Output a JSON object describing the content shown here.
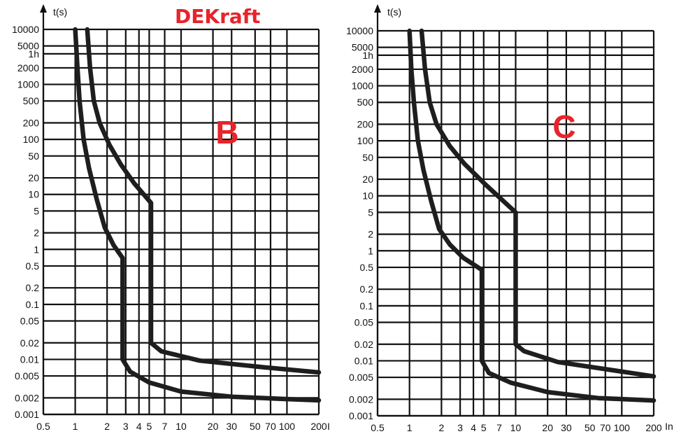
{
  "brand": {
    "text": "DEKraft",
    "color": "#e8232a"
  },
  "accent_color": "#e8232a",
  "grid_color": "#111111",
  "curve_color": "#1e1e1e",
  "chart_data": [
    {
      "type": "line",
      "title": "B",
      "xlabel": "I",
      "ylabel": "t(s)",
      "x_scale": "log",
      "y_scale": "log",
      "xlim": [
        0.5,
        200
      ],
      "ylim": [
        0.001,
        10000
      ],
      "grid": true,
      "x_ticks": [
        {
          "v": 0.5,
          "t": "0.5"
        },
        {
          "v": 1,
          "t": "1"
        },
        {
          "v": 2,
          "t": "2"
        },
        {
          "v": 3,
          "t": "3"
        },
        {
          "v": 4,
          "t": "4"
        },
        {
          "v": 5,
          "t": "5"
        },
        {
          "v": 7,
          "t": "7"
        },
        {
          "v": 10,
          "t": "10"
        },
        {
          "v": 20,
          "t": "20"
        },
        {
          "v": 30,
          "t": "30"
        },
        {
          "v": 50,
          "t": "50"
        },
        {
          "v": 70,
          "t": "70"
        },
        {
          "v": 100,
          "t": "100"
        },
        {
          "v": 200,
          "t": "200"
        }
      ],
      "y_ticks": [
        {
          "v": 10000,
          "t": "10000"
        },
        {
          "v": 5000,
          "t": "5000"
        },
        {
          "v": 3600,
          "t": "1h"
        },
        {
          "v": 2000,
          "t": "2000"
        },
        {
          "v": 1000,
          "t": "1000"
        },
        {
          "v": 500,
          "t": "500"
        },
        {
          "v": 200,
          "t": "200"
        },
        {
          "v": 100,
          "t": "100"
        },
        {
          "v": 50,
          "t": "50"
        },
        {
          "v": 20,
          "t": "20"
        },
        {
          "v": 10,
          "t": "10"
        },
        {
          "v": 5,
          "t": "5"
        },
        {
          "v": 2,
          "t": "2"
        },
        {
          "v": 1,
          "t": "1"
        },
        {
          "v": 0.5,
          "t": "0.5"
        },
        {
          "v": 0.2,
          "t": "0.2"
        },
        {
          "v": 0.1,
          "t": "0.1"
        },
        {
          "v": 0.05,
          "t": "0.05"
        },
        {
          "v": 0.02,
          "t": "0.02"
        },
        {
          "v": 0.01,
          "t": "0.01"
        },
        {
          "v": 0.005,
          "t": "0.005"
        },
        {
          "v": 0.002,
          "t": "0.002"
        },
        {
          "v": 0.001,
          "t": "0.001"
        }
      ],
      "series": [
        {
          "points": [
            [
              1.0,
              10000
            ],
            [
              1.05,
              2000
            ],
            [
              1.1,
              500
            ],
            [
              1.2,
              100
            ],
            [
              1.35,
              30
            ],
            [
              1.6,
              8
            ],
            [
              1.9,
              2.5
            ],
            [
              2.3,
              1.2
            ],
            [
              2.8,
              0.7
            ],
            [
              2.8,
              0.02
            ],
            [
              2.8,
              0.01
            ],
            [
              3.3,
              0.006
            ],
            [
              5,
              0.0038
            ],
            [
              10,
              0.0026
            ],
            [
              30,
              0.0021
            ],
            [
              100,
              0.0019
            ],
            [
              200,
              0.0018
            ]
          ]
        },
        {
          "points": [
            [
              1.3,
              10000
            ],
            [
              1.38,
              2000
            ],
            [
              1.5,
              500
            ],
            [
              1.7,
              200
            ],
            [
              2.1,
              80
            ],
            [
              2.7,
              35
            ],
            [
              3.6,
              16
            ],
            [
              5.2,
              7
            ],
            [
              5.2,
              0.1
            ],
            [
              5.2,
              0.02
            ],
            [
              6.5,
              0.014
            ],
            [
              15,
              0.0095
            ],
            [
              60,
              0.0072
            ],
            [
              200,
              0.0058
            ]
          ]
        }
      ]
    },
    {
      "type": "line",
      "title": "C",
      "xlabel": "In",
      "ylabel": "t(s)",
      "x_scale": "log",
      "y_scale": "log",
      "xlim": [
        0.5,
        200
      ],
      "ylim": [
        0.001,
        10000
      ],
      "grid": true,
      "x_ticks": [
        {
          "v": 0.5,
          "t": "0.5"
        },
        {
          "v": 1,
          "t": "1"
        },
        {
          "v": 2,
          "t": "2"
        },
        {
          "v": 3,
          "t": "3"
        },
        {
          "v": 4,
          "t": "4"
        },
        {
          "v": 5,
          "t": "5"
        },
        {
          "v": 7,
          "t": "7"
        },
        {
          "v": 10,
          "t": "10"
        },
        {
          "v": 20,
          "t": "20"
        },
        {
          "v": 30,
          "t": "30"
        },
        {
          "v": 50,
          "t": "50"
        },
        {
          "v": 70,
          "t": "70"
        },
        {
          "v": 100,
          "t": "100"
        },
        {
          "v": 200,
          "t": "200"
        }
      ],
      "y_ticks": [
        {
          "v": 10000,
          "t": "10000"
        },
        {
          "v": 5000,
          "t": "5000"
        },
        {
          "v": 3600,
          "t": "1h"
        },
        {
          "v": 2000,
          "t": "2000"
        },
        {
          "v": 1000,
          "t": "1000"
        },
        {
          "v": 500,
          "t": "500"
        },
        {
          "v": 200,
          "t": "200"
        },
        {
          "v": 100,
          "t": "100"
        },
        {
          "v": 50,
          "t": "50"
        },
        {
          "v": 20,
          "t": "20"
        },
        {
          "v": 10,
          "t": "10"
        },
        {
          "v": 5,
          "t": "5"
        },
        {
          "v": 2,
          "t": "2"
        },
        {
          "v": 1,
          "t": "1"
        },
        {
          "v": 0.5,
          "t": "0.5"
        },
        {
          "v": 0.2,
          "t": "0.2"
        },
        {
          "v": 0.1,
          "t": "0.1"
        },
        {
          "v": 0.05,
          "t": "0.05"
        },
        {
          "v": 0.02,
          "t": "0.02"
        },
        {
          "v": 0.01,
          "t": "0.01"
        },
        {
          "v": 0.005,
          "t": "0.005"
        },
        {
          "v": 0.002,
          "t": "0.002"
        },
        {
          "v": 0.001,
          "t": "0.001"
        }
      ],
      "series": [
        {
          "points": [
            [
              1.0,
              10000
            ],
            [
              1.04,
              2000
            ],
            [
              1.1,
              500
            ],
            [
              1.2,
              100
            ],
            [
              1.35,
              30
            ],
            [
              1.6,
              8
            ],
            [
              1.9,
              2.5
            ],
            [
              2.4,
              1.3
            ],
            [
              3.2,
              0.75
            ],
            [
              4.8,
              0.45
            ],
            [
              4.8,
              0.02
            ],
            [
              4.8,
              0.01
            ],
            [
              5.6,
              0.006
            ],
            [
              9,
              0.004
            ],
            [
              20,
              0.0027
            ],
            [
              60,
              0.0021
            ],
            [
              200,
              0.0019
            ]
          ]
        },
        {
          "points": [
            [
              1.3,
              10000
            ],
            [
              1.4,
              2000
            ],
            [
              1.55,
              500
            ],
            [
              1.8,
              200
            ],
            [
              2.4,
              80
            ],
            [
              3.3,
              38
            ],
            [
              5.2,
              16
            ],
            [
              10,
              5
            ],
            [
              10,
              0.1
            ],
            [
              10,
              0.02
            ],
            [
              12,
              0.015
            ],
            [
              25,
              0.0095
            ],
            [
              80,
              0.0068
            ],
            [
              200,
              0.0052
            ]
          ]
        }
      ]
    }
  ]
}
